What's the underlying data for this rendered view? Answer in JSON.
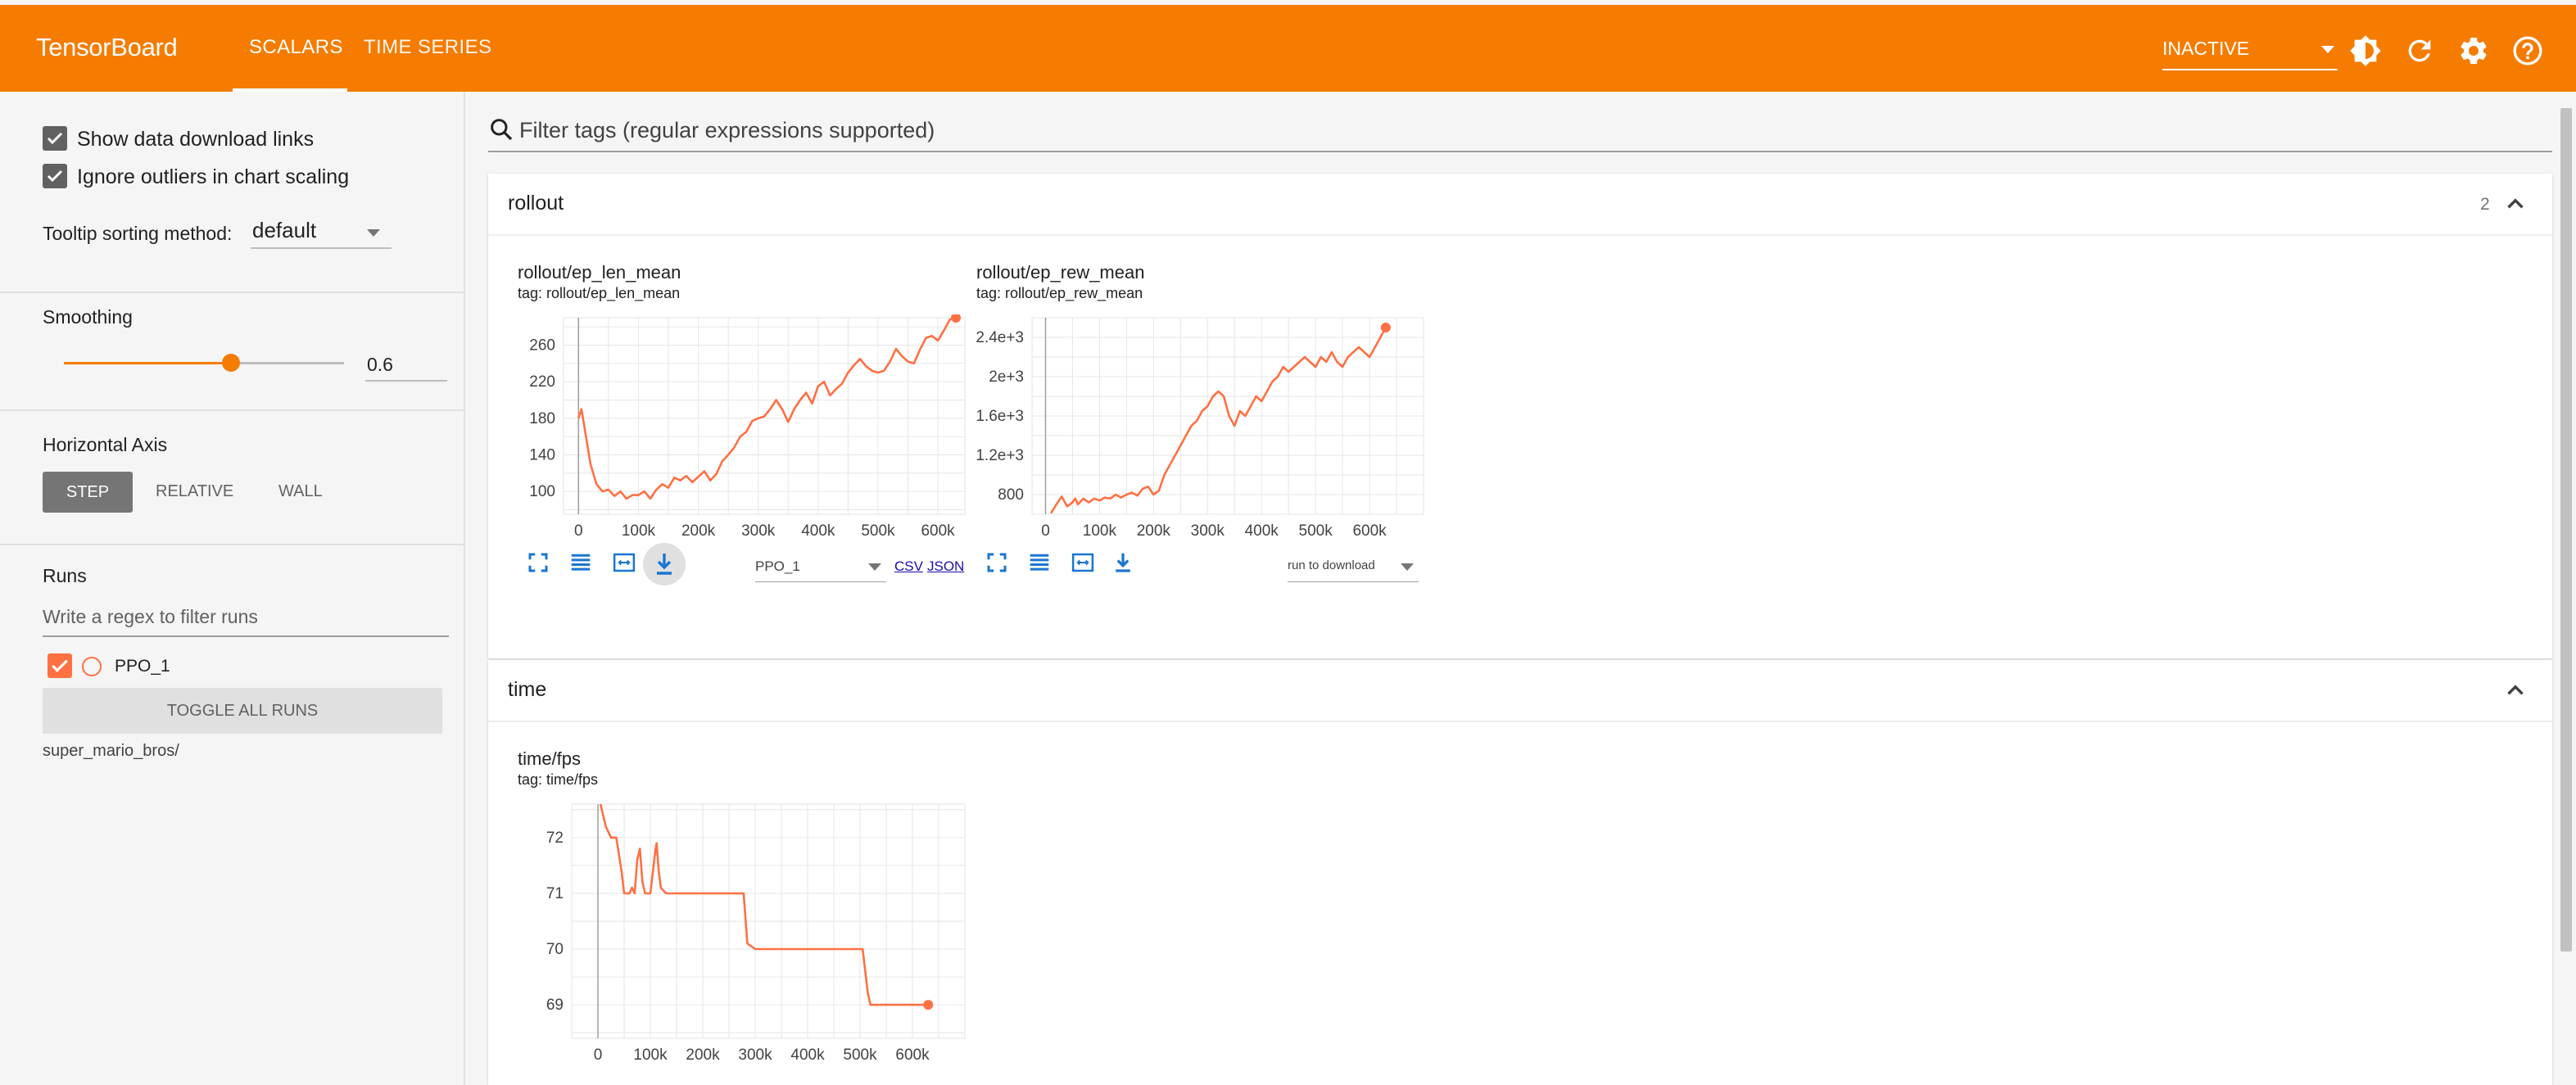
{
  "header": {
    "brand": "TensorBoard",
    "tabs": [
      "SCALARS",
      "TIME SERIES"
    ],
    "reload": "INACTIVE"
  },
  "sidebar": {
    "show_download_links": "Show data download links",
    "ignore_outliers": "Ignore outliers in chart scaling",
    "tooltip_label": "Tooltip sorting method:",
    "tooltip_value": "default",
    "smoothing_title": "Smoothing",
    "smoothing_value": "0.6",
    "smoothing_fraction": 0.6,
    "axis_title": "Horizontal Axis",
    "axis_options": [
      "STEP",
      "RELATIVE",
      "WALL"
    ],
    "runs_title": "Runs",
    "runs_filter_placeholder": "Write a regex to filter runs",
    "run_name": "PPO_1",
    "toggle_all": "TOGGLE ALL RUNS",
    "run_dir": "super_mario_bros/"
  },
  "main": {
    "filter_placeholder": "Filter tags (regular expressions supported)",
    "groups": [
      {
        "name": "rollout",
        "count": "2"
      },
      {
        "name": "time"
      }
    ],
    "chart_controls": {
      "run_select_1": "PPO_1",
      "run_select_2": "run to download",
      "csv": "CSV",
      "json": "JSON"
    }
  },
  "colors": {
    "accent": "#f57c00",
    "series": "#ff7043"
  },
  "chart_data": [
    {
      "type": "line",
      "title": "rollout/ep_len_mean",
      "tag": "tag: rollout/ep_len_mean",
      "x_ticks": [
        0,
        100000,
        200000,
        300000,
        400000,
        500000,
        600000
      ],
      "x_tick_labels": [
        "0",
        "100k",
        "200k",
        "300k",
        "400k",
        "500k",
        "600k"
      ],
      "y_ticks": [
        100,
        140,
        180,
        220,
        260
      ],
      "y_tick_labels": [
        "100",
        "140",
        "180",
        "220",
        "260"
      ],
      "xlim": [
        -25000,
        645000
      ],
      "ylim": [
        75,
        290
      ],
      "series": [
        {
          "name": "PPO_1",
          "x": [
            0,
            5000,
            10000,
            20000,
            30000,
            40000,
            50000,
            60000,
            70000,
            80000,
            90000,
            100000,
            110000,
            120000,
            130000,
            140000,
            150000,
            160000,
            170000,
            180000,
            190000,
            200000,
            210000,
            220000,
            230000,
            240000,
            250000,
            260000,
            270000,
            280000,
            290000,
            300000,
            310000,
            320000,
            330000,
            340000,
            350000,
            360000,
            370000,
            380000,
            390000,
            400000,
            410000,
            420000,
            430000,
            440000,
            450000,
            460000,
            470000,
            480000,
            490000,
            500000,
            510000,
            520000,
            530000,
            540000,
            550000,
            560000,
            570000,
            580000,
            590000,
            600000,
            610000,
            620000,
            630000
          ],
          "y": [
            180,
            190,
            170,
            130,
            108,
            100,
            102,
            95,
            100,
            92,
            96,
            96,
            100,
            92,
            102,
            108,
            104,
            115,
            112,
            117,
            110,
            116,
            122,
            112,
            119,
            133,
            140,
            148,
            160,
            165,
            177,
            180,
            182,
            190,
            200,
            190,
            176,
            190,
            200,
            208,
            196,
            215,
            220,
            205,
            212,
            218,
            230,
            238,
            245,
            237,
            232,
            230,
            232,
            242,
            256,
            248,
            242,
            240,
            255,
            268,
            270,
            265,
            276,
            288,
            290
          ]
        }
      ]
    },
    {
      "type": "line",
      "title": "rollout/ep_rew_mean",
      "tag": "tag: rollout/ep_rew_mean",
      "x_ticks": [
        0,
        100000,
        200000,
        300000,
        400000,
        500000,
        600000
      ],
      "x_tick_labels": [
        "0",
        "100k",
        "200k",
        "300k",
        "400k",
        "500k",
        "600k"
      ],
      "y_ticks": [
        800,
        1200,
        1600,
        2000,
        2400
      ],
      "y_tick_labels": [
        "800",
        "1.2e+3",
        "1.6e+3",
        "2e+3",
        "2.4e+3"
      ],
      "xlim": [
        -25000,
        700000
      ],
      "ylim": [
        600,
        2600
      ],
      "series": [
        {
          "name": "PPO_1",
          "x": [
            10000,
            20000,
            25000,
            30000,
            40000,
            50000,
            55000,
            60000,
            70000,
            80000,
            90000,
            100000,
            110000,
            120000,
            130000,
            140000,
            150000,
            160000,
            170000,
            180000,
            190000,
            200000,
            210000,
            220000,
            230000,
            240000,
            250000,
            260000,
            270000,
            280000,
            290000,
            300000,
            310000,
            320000,
            330000,
            340000,
            350000,
            360000,
            370000,
            380000,
            390000,
            400000,
            410000,
            420000,
            430000,
            440000,
            450000,
            460000,
            470000,
            480000,
            490000,
            500000,
            510000,
            520000,
            530000,
            540000,
            550000,
            560000,
            570000,
            580000,
            590000,
            600000,
            610000,
            620000,
            630000
          ],
          "y": [
            610,
            700,
            740,
            780,
            680,
            720,
            760,
            700,
            760,
            720,
            760,
            740,
            770,
            760,
            800,
            770,
            800,
            820,
            790,
            860,
            880,
            800,
            840,
            1000,
            1100,
            1200,
            1300,
            1400,
            1500,
            1550,
            1650,
            1700,
            1800,
            1850,
            1800,
            1600,
            1500,
            1650,
            1600,
            1700,
            1800,
            1750,
            1850,
            1950,
            2000,
            2100,
            2050,
            2100,
            2150,
            2200,
            2150,
            2100,
            2200,
            2150,
            2250,
            2150,
            2100,
            2200,
            2250,
            2300,
            2250,
            2200,
            2300,
            2400,
            2500
          ]
        }
      ]
    },
    {
      "type": "line",
      "title": "time/fps",
      "tag": "tag: time/fps",
      "x_ticks": [
        0,
        100000,
        200000,
        300000,
        400000,
        500000,
        600000
      ],
      "x_tick_labels": [
        "0",
        "100k",
        "200k",
        "300k",
        "400k",
        "500k",
        "600k"
      ],
      "y_ticks": [
        69,
        70,
        71,
        72
      ],
      "y_tick_labels": [
        "69",
        "70",
        "71",
        "72"
      ],
      "xlim": [
        -50000,
        700000
      ],
      "ylim": [
        68.4,
        72.6
      ],
      "series": [
        {
          "name": "PPO_1",
          "x": [
            5000,
            15000,
            25000,
            35000,
            45000,
            50000,
            60000,
            65000,
            70000,
            75000,
            80000,
            85000,
            90000,
            95000,
            100000,
            105000,
            110000,
            112000,
            116000,
            120000,
            130000,
            150000,
            200000,
            250000,
            270000,
            278000,
            285000,
            300000,
            350000,
            400000,
            450000,
            500000,
            505000,
            510000,
            515000,
            520000,
            540000,
            580000,
            600000,
            630000
          ],
          "y": [
            72.6,
            72.2,
            72.0,
            72.0,
            71.4,
            71.0,
            71.0,
            71.1,
            71.0,
            71.6,
            71.8,
            71.2,
            71.0,
            71.0,
            71.0,
            71.4,
            71.8,
            71.9,
            71.4,
            71.1,
            71.0,
            71.0,
            71.0,
            71.0,
            71.0,
            71.0,
            70.1,
            70.0,
            70.0,
            70.0,
            70.0,
            70.0,
            70.0,
            69.6,
            69.2,
            69.0,
            69.0,
            69.0,
            69.0,
            69.0
          ]
        }
      ]
    }
  ]
}
